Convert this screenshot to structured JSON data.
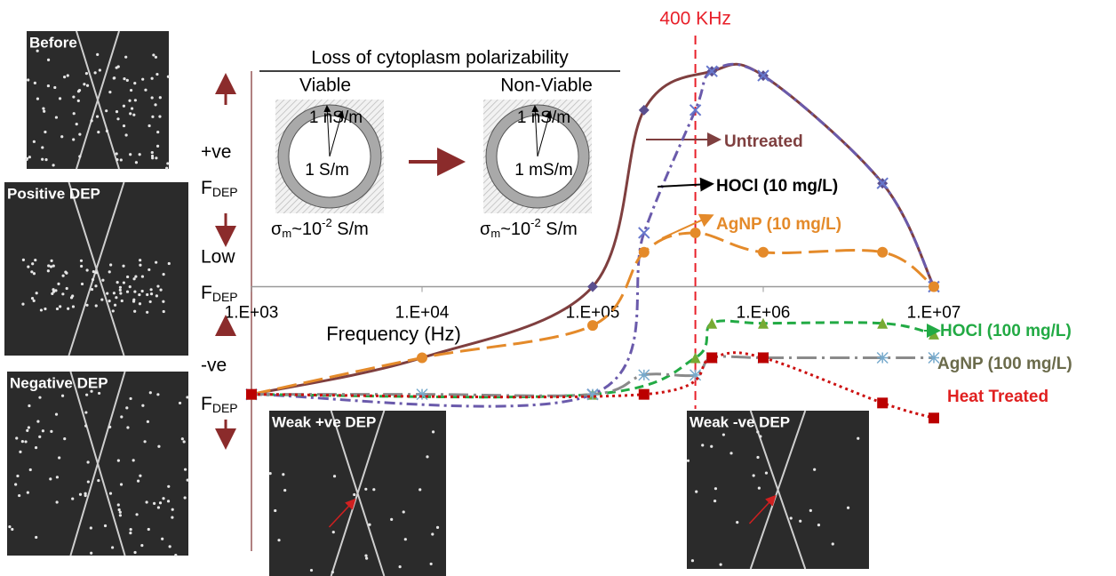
{
  "chart_data": {
    "type": "line",
    "xlabel": "Frequency (Hz)",
    "xscale": "log",
    "xlim": [
      1000,
      10000000
    ],
    "xticks": [
      {
        "value": 1000,
        "label": "1.E+03"
      },
      {
        "value": 10000,
        "label": "1.E+04"
      },
      {
        "value": 100000,
        "label": "1.E+05"
      },
      {
        "value": 1000000,
        "label": "1.E+06"
      },
      {
        "value": 10000000,
        "label": "1.E+07"
      }
    ],
    "ylim": [
      -0.65,
      1.1
    ],
    "y_labels": [
      "+ve",
      "Low",
      "-ve"
    ],
    "force": {
      "base": "F",
      "sub": "DEP"
    },
    "annotation": {
      "text": "400 KHz",
      "x": 400000,
      "color": "#e8202a"
    },
    "series": [
      {
        "name": "Untreated",
        "color": "#7f3f3f",
        "label_color": "#7f3f3f",
        "marker": "diamond",
        "marker_color": "#5a4f8f",
        "dash": "",
        "width": 3,
        "x": [
          1000,
          10000,
          100000,
          200000,
          500000,
          1000000,
          5000000,
          10000000
        ],
        "values": [
          -0.5,
          -0.33,
          0,
          0.82,
          1.0,
          0.98,
          0.48,
          0
        ]
      },
      {
        "name": "HOCl (10 mg/L)",
        "color": "#6a5aab",
        "label_color": "#000000",
        "marker": "x",
        "marker_color": "#6677cc",
        "dash": "12 5 3 5",
        "width": 3,
        "x": [
          1000,
          100000,
          200000,
          400000,
          500000,
          1000000,
          5000000,
          10000000
        ],
        "values": [
          -0.5,
          -0.5,
          0.25,
          0.82,
          1.0,
          0.98,
          0.48,
          0
        ]
      },
      {
        "name": "AgNP (10 mg/L)",
        "color": "#e48a2a",
        "label_color": "#e48a2a",
        "marker": "circle",
        "marker_color": "#e48a2a",
        "dash": "22 8",
        "width": 3,
        "x": [
          1000,
          10000,
          100000,
          200000,
          400000,
          1000000,
          5000000,
          10000000
        ],
        "values": [
          -0.5,
          -0.33,
          -0.18,
          0.16,
          0.25,
          0.16,
          0.16,
          0
        ]
      },
      {
        "name": "HOCl (100 mg/L)",
        "color": "#22aa44",
        "label_color": "#22aa44",
        "marker": "triangle",
        "marker_color": "#77aa33",
        "dash": "10 6",
        "width": 3,
        "x": [
          1000,
          100000,
          400000,
          500000,
          1000000,
          5000000,
          10000000
        ],
        "values": [
          -0.5,
          -0.5,
          -0.33,
          -0.17,
          -0.17,
          -0.17,
          -0.22
        ]
      },
      {
        "name": "AgNP (100 mg/L)",
        "color": "#8a8a8a",
        "label_color": "#6b6b4b",
        "marker": "asterisk",
        "marker_color": "#77aacc",
        "dash": "22 6 3 6",
        "width": 3,
        "x": [
          1000,
          10000,
          100000,
          200000,
          400000,
          500000,
          1000000,
          5000000,
          10000000
        ],
        "values": [
          -0.5,
          -0.5,
          -0.5,
          -0.41,
          -0.41,
          -0.33,
          -0.33,
          -0.33,
          -0.33
        ]
      },
      {
        "name": "Heat Treated",
        "color": "#cc1111",
        "label_color": "#e02020",
        "marker": "square",
        "marker_color": "#bb0000",
        "dash": "3 4",
        "width": 3,
        "x": [
          1000,
          200000,
          500000,
          1000000,
          5000000,
          10000000
        ],
        "values": [
          -0.5,
          -0.5,
          -0.33,
          -0.33,
          -0.54,
          -0.61
        ]
      }
    ]
  },
  "inset": {
    "title": "Loss of cytoplasm polarizability",
    "viable": {
      "label": "Viable",
      "membrane": "1 nS/m",
      "cytoplasm": "1 S/m"
    },
    "nonviable": {
      "label": "Non-Viable",
      "membrane": "1 nS/m",
      "cytoplasm": "1 mS/m"
    },
    "medium": {
      "base": "σ",
      "sub": "m",
      "mid": "~10",
      "sup": "-2",
      "end": " S/m"
    }
  },
  "images": [
    "Before",
    "Positive DEP",
    "Negative DEP",
    "Weak +ve DEP",
    "Weak -ve DEP"
  ]
}
